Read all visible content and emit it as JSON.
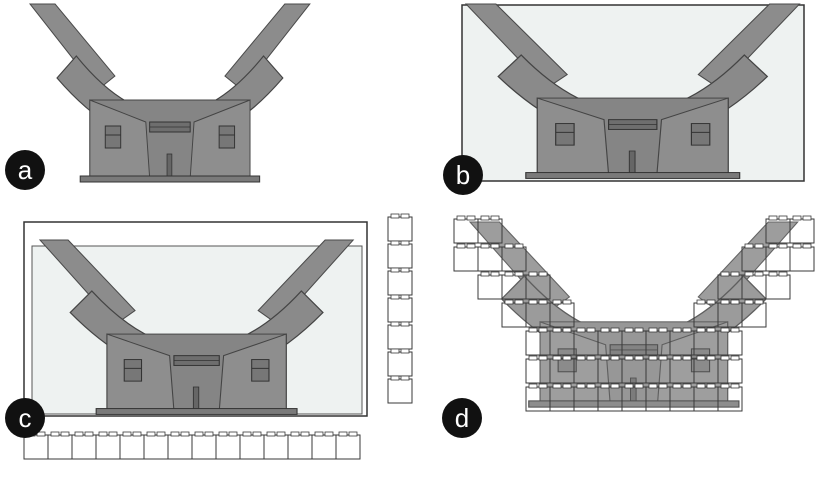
{
  "panels": [
    {
      "id": "a",
      "label": "a"
    },
    {
      "id": "b",
      "label": "b"
    },
    {
      "id": "c",
      "label": "c"
    },
    {
      "id": "d",
      "label": "d"
    }
  ],
  "colors": {
    "structure": "#8a8a8a",
    "structure_dark": "#6e6e6e",
    "outline": "#3a3a3a",
    "box_fill": "#eef2f1",
    "badge": "#111111",
    "brick_fill": "#ffffff"
  },
  "icons": {
    "brick": "lego-brick-icon",
    "badge": "circle-label-icon"
  }
}
